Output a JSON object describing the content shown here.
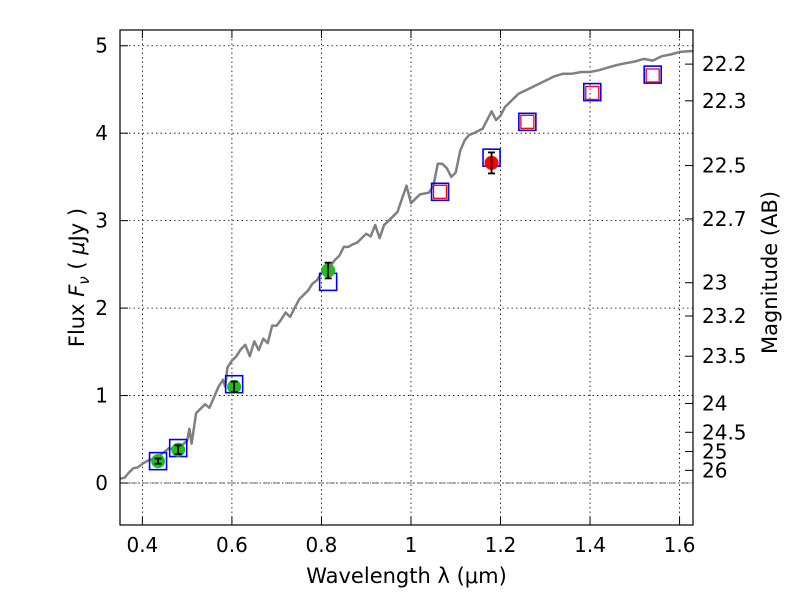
{
  "chart_data": {
    "type": "scatter",
    "xlabel": "Wavelength  λ (μm)",
    "ylabel_parts": [
      "Flux  ",
      "F",
      "ν",
      "  ( ",
      "μ",
      "Jy )"
    ],
    "ylabel_right": "Magnitude (AB)",
    "xlim": [
      0.35,
      1.63
    ],
    "ylim": [
      -0.48,
      5.18
    ],
    "x_ticks": [
      0.4,
      0.6,
      0.8,
      1.0,
      1.2,
      1.4,
      1.6
    ],
    "x_tick_labels": [
      "0.4",
      "0.6",
      "0.8",
      "1",
      "1.2",
      "1.4",
      "1.6"
    ],
    "y_ticks": [
      0,
      1,
      2,
      3,
      4,
      5
    ],
    "y_tick_labels": [
      "0",
      "1",
      "2",
      "3",
      "4",
      "5"
    ],
    "mag_ticks": [
      {
        "label": "22.2",
        "flux": 4.79
      },
      {
        "label": "22.3",
        "flux": 4.37
      },
      {
        "label": "22.5",
        "flux": 3.63
      },
      {
        "label": "22.7",
        "flux": 3.02
      },
      {
        "label": "23",
        "flux": 2.29
      },
      {
        "label": "23.2",
        "flux": 1.91
      },
      {
        "label": "23.5",
        "flux": 1.45
      },
      {
        "label": "24",
        "flux": 0.91
      },
      {
        "label": "24.5",
        "flux": 0.58
      },
      {
        "label": "25",
        "flux": 0.36
      },
      {
        "label": "26",
        "flux": 0.145
      }
    ],
    "grid": true,
    "colors": {
      "spectrum": "#808080",
      "model_box": "#0000ff",
      "observed_box": "#ff0000",
      "green_point": "#22bb22",
      "red_point": "#ff0000",
      "zero_line": "#444444"
    },
    "series": [
      {
        "name": "spectrum",
        "kind": "line",
        "x": [
          0.35,
          0.36,
          0.37,
          0.38,
          0.39,
          0.4,
          0.41,
          0.42,
          0.43,
          0.44,
          0.45,
          0.46,
          0.47,
          0.48,
          0.49,
          0.5,
          0.505,
          0.51,
          0.52,
          0.53,
          0.54,
          0.55,
          0.56,
          0.57,
          0.58,
          0.585,
          0.59,
          0.6,
          0.61,
          0.62,
          0.63,
          0.64,
          0.65,
          0.66,
          0.67,
          0.68,
          0.69,
          0.7,
          0.71,
          0.72,
          0.73,
          0.74,
          0.75,
          0.76,
          0.77,
          0.78,
          0.79,
          0.8,
          0.81,
          0.82,
          0.83,
          0.84,
          0.85,
          0.86,
          0.87,
          0.88,
          0.89,
          0.9,
          0.91,
          0.92,
          0.93,
          0.94,
          0.95,
          0.96,
          0.97,
          0.98,
          0.99,
          1.0,
          1.02,
          1.04,
          1.05,
          1.06,
          1.07,
          1.08,
          1.09,
          1.1,
          1.11,
          1.12,
          1.13,
          1.14,
          1.16,
          1.18,
          1.19,
          1.2,
          1.21,
          1.22,
          1.24,
          1.26,
          1.28,
          1.3,
          1.32,
          1.34,
          1.36,
          1.38,
          1.4,
          1.42,
          1.44,
          1.46,
          1.48,
          1.5,
          1.52,
          1.54,
          1.56,
          1.58,
          1.6,
          1.63
        ],
        "y": [
          0.05,
          0.06,
          0.12,
          0.17,
          0.18,
          0.22,
          0.25,
          0.27,
          0.29,
          0.32,
          0.36,
          0.4,
          0.38,
          0.42,
          0.44,
          0.48,
          0.62,
          0.45,
          0.8,
          0.85,
          0.9,
          0.86,
          0.98,
          1.1,
          1.18,
          1.1,
          1.32,
          1.4,
          1.45,
          1.53,
          1.58,
          1.45,
          1.62,
          1.52,
          1.65,
          1.6,
          1.8,
          1.8,
          1.87,
          1.95,
          1.9,
          2.0,
          2.1,
          2.15,
          2.2,
          2.28,
          2.32,
          2.4,
          2.5,
          2.48,
          2.55,
          2.6,
          2.7,
          2.7,
          2.73,
          2.75,
          2.8,
          2.85,
          2.82,
          2.95,
          2.8,
          2.95,
          3.0,
          3.05,
          3.1,
          3.25,
          3.4,
          3.2,
          3.3,
          3.32,
          3.4,
          3.65,
          3.65,
          3.6,
          3.5,
          3.55,
          3.8,
          3.92,
          3.98,
          4.0,
          4.05,
          4.25,
          4.15,
          4.2,
          4.3,
          4.35,
          4.45,
          4.5,
          4.55,
          4.6,
          4.65,
          4.68,
          4.68,
          4.7,
          4.7,
          4.72,
          4.75,
          4.78,
          4.8,
          4.82,
          4.85,
          4.83,
          4.88,
          4.9,
          4.93,
          4.94
        ]
      },
      {
        "name": "model-photometry",
        "kind": "open-square",
        "x": [
          0.435,
          0.48,
          0.605,
          0.815,
          1.065,
          1.18,
          1.26,
          1.405,
          1.54
        ],
        "y": [
          0.25,
          0.4,
          1.13,
          2.3,
          3.33,
          3.72,
          4.13,
          4.47,
          4.67
        ]
      },
      {
        "name": "observed-photometry",
        "kind": "open-square-small",
        "x": [
          1.065,
          1.26,
          1.405,
          1.54
        ],
        "y": [
          3.33,
          4.13,
          4.46,
          4.66
        ]
      },
      {
        "name": "green-detections",
        "kind": "circle-errorbar",
        "x": [
          0.435,
          0.48,
          0.605,
          0.815
        ],
        "y": [
          0.25,
          0.38,
          1.1,
          2.43
        ],
        "err": [
          0.03,
          0.05,
          0.06,
          0.09
        ]
      },
      {
        "name": "red-detection",
        "kind": "circle-errorbar",
        "x": [
          1.18
        ],
        "y": [
          3.66
        ],
        "err": [
          0.12
        ]
      }
    ]
  }
}
